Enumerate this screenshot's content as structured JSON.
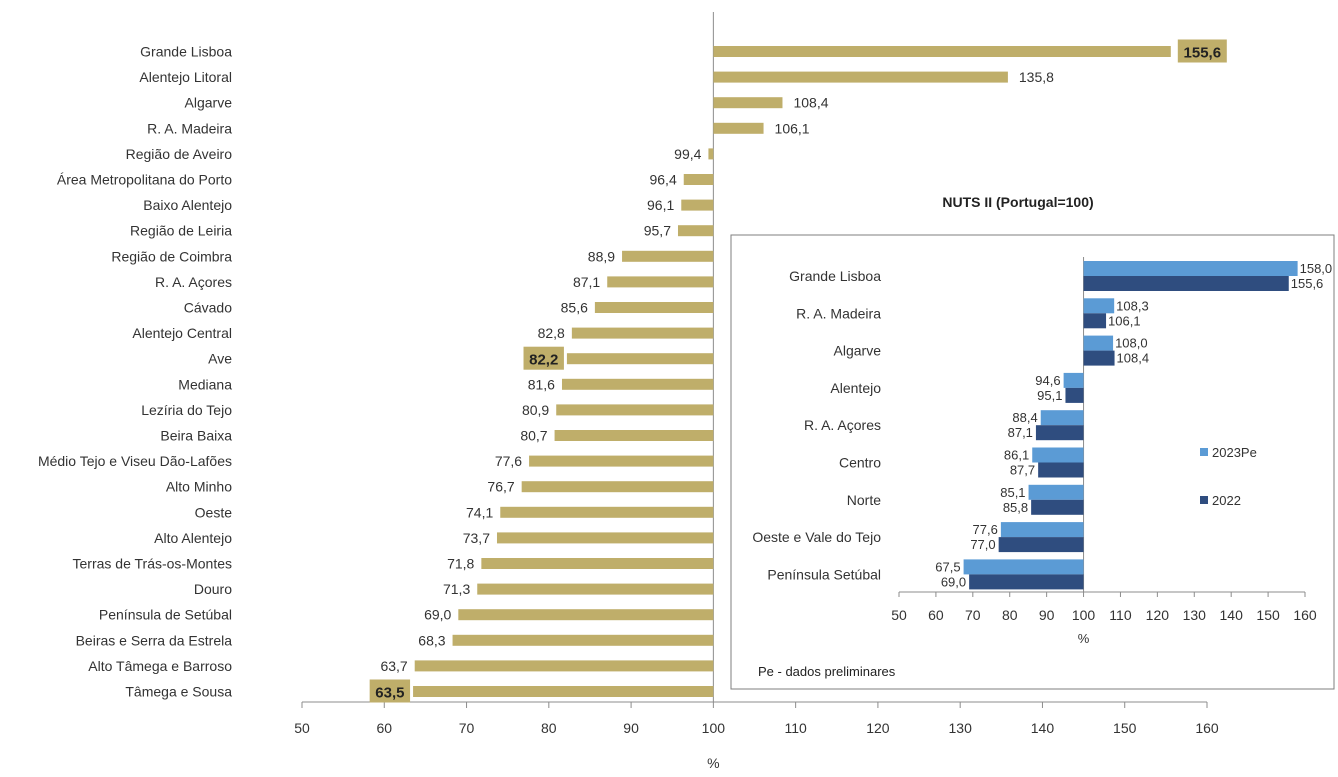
{
  "chart_data": [
    {
      "type": "bar",
      "orientation": "horizontal",
      "baseline": 100,
      "xlabel": "%",
      "xlim": [
        50,
        160
      ],
      "xticks": [
        50,
        60,
        70,
        80,
        90,
        100,
        110,
        120,
        130,
        140,
        150,
        160
      ],
      "color": "#bfae6a",
      "highlight_color": "#bfae6a",
      "categories": [
        "Grande Lisboa",
        "Alentejo Litoral",
        "Algarve",
        "R. A. Madeira",
        "Região de Aveiro",
        "Área Metropolitana do Porto",
        "Baixo Alentejo",
        "Região de Leiria",
        "Região de Coimbra",
        "R. A. Açores",
        "Cávado",
        "Alentejo Central",
        "Ave",
        "Mediana",
        "Lezíria do Tejo",
        "Beira Baixa",
        "Médio Tejo e Viseu Dão-Lafões",
        "Alto Minho",
        "Oeste",
        "Alto Alentejo",
        "Terras de Trás-os-Montes",
        "Douro",
        "Península de Setúbal",
        "Beiras e Serra da Estrela",
        "Alto Tâmega e Barroso",
        "Tâmega e Sousa"
      ],
      "values": [
        155.6,
        135.8,
        108.4,
        106.1,
        99.4,
        96.4,
        96.1,
        95.7,
        88.9,
        87.1,
        85.6,
        82.8,
        82.2,
        81.6,
        80.9,
        80.7,
        77.6,
        76.7,
        74.1,
        73.7,
        71.8,
        71.3,
        69.0,
        68.3,
        63.7,
        63.5
      ],
      "value_labels": [
        "155,6",
        "135,8",
        "108,4",
        "106,1",
        "99,4",
        "96,4",
        "96,1",
        "95,7",
        "88,9",
        "87,1",
        "85,6",
        "82,8",
        "82,2",
        "81,6",
        "80,9",
        "80,7",
        "77,6",
        "76,7",
        "74,1",
        "73,7",
        "71,8",
        "71,3",
        "69,0",
        "68,3",
        "63,7",
        "63,5"
      ],
      "highlighted": [
        "Grande Lisboa",
        "Ave",
        "Tâmega e Sousa"
      ]
    },
    {
      "type": "bar",
      "orientation": "horizontal",
      "baseline": 100,
      "title": "NUTS II (Portugal=100)",
      "xlabel": "%",
      "xlim": [
        50,
        160
      ],
      "xticks": [
        50,
        60,
        70,
        80,
        90,
        100,
        110,
        120,
        130,
        140,
        150,
        160
      ],
      "categories": [
        "Grande Lisboa",
        "R. A. Madeira",
        "Algarve",
        "Alentejo",
        "R. A. Açores",
        "Centro",
        "Norte",
        "Oeste e Vale do Tejo",
        "Península Setúbal"
      ],
      "series": [
        {
          "name": "2023Pe",
          "color": "#5b9bd5",
          "values": [
            158.0,
            108.3,
            108.0,
            94.6,
            88.4,
            86.1,
            85.1,
            77.6,
            67.5
          ],
          "value_labels": [
            "158,0",
            "108,3",
            "108,0",
            "94,6",
            "88,4",
            "86,1",
            "85,1",
            "77,6",
            "67,5"
          ]
        },
        {
          "name": "2022",
          "color": "#2f4d7f",
          "values": [
            155.6,
            106.1,
            108.4,
            95.1,
            87.1,
            87.7,
            85.8,
            77.0,
            69.0
          ],
          "value_labels": [
            "155,6",
            "106,1",
            "108,4",
            "95,1",
            "87,1",
            "87,7",
            "85,8",
            "77,0",
            "69,0"
          ]
        }
      ],
      "legend_position": "right",
      "note": "Pe - dados preliminares"
    }
  ]
}
